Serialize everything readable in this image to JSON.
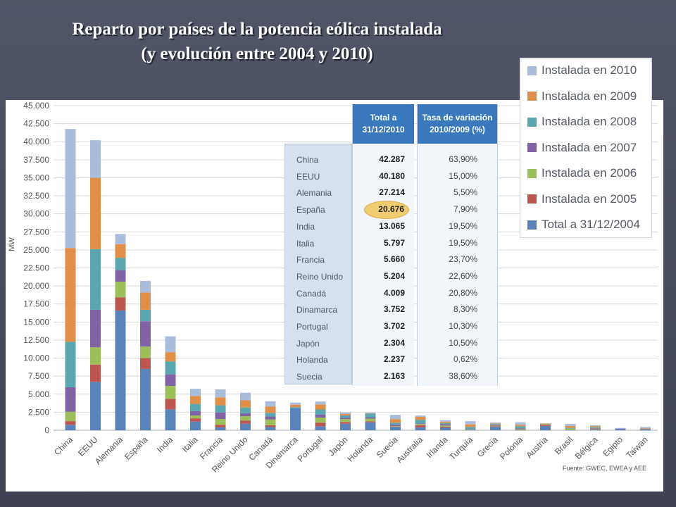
{
  "title": {
    "line1": "Reparto por países de la potencia eólica instalada",
    "line2": "(y evolución entre 2004 y 2010)"
  },
  "source": "Fuente: GWEC, EWEA y AEE",
  "colors": {
    "Total a 31/12/2004": "#5a84b9",
    "Instalada en 2005": "#bd5550",
    "Instalada en 2006": "#9cbf5a",
    "Instalada en 2007": "#8163a5",
    "Instalada en 2008": "#5aa7b0",
    "Instalada en 2009": "#e08e48",
    "Instalada en 2010": "#a9bcdc"
  },
  "legend": [
    "Instalada en 2010",
    "Instalada en 2009",
    "Instalada en 2008",
    "Instalada en 2007",
    "Instalada en 2006",
    "Instalada en 2005",
    "Total a 31/12/2004"
  ],
  "table": {
    "header_total": "Total a\n31/12/2010",
    "header_rate": "Tasa de variación\n2010/2009 (%)",
    "highlight_row": 3,
    "rows": [
      {
        "country": "China",
        "total": "42.287",
        "rate": "63,90%"
      },
      {
        "country": "EEUU",
        "total": "40.180",
        "rate": "15,00%"
      },
      {
        "country": "Alemania",
        "total": "27.214",
        "rate": "5,50%"
      },
      {
        "country": "España",
        "total": "20.676",
        "rate": "7,90%"
      },
      {
        "country": "India",
        "total": "13.065",
        "rate": "19,50%"
      },
      {
        "country": "Italia",
        "total": "5.797",
        "rate": "19,50%"
      },
      {
        "country": "Francia",
        "total": "5.660",
        "rate": "23,70%"
      },
      {
        "country": "Reino Unido",
        "total": "5.204",
        "rate": "22,60%"
      },
      {
        "country": "Canadá",
        "total": "4.009",
        "rate": "20,80%"
      },
      {
        "country": "Dinamarca",
        "total": "3.752",
        "rate": "8,30%"
      },
      {
        "country": "Portugal",
        "total": "3.702",
        "rate": "10,30%"
      },
      {
        "country": "Japón",
        "total": "2.304",
        "rate": "10,50%"
      },
      {
        "country": "Holanda",
        "total": "2.237",
        "rate": "0,62%"
      },
      {
        "country": "Suecia",
        "total": "2.163",
        "rate": "38,60%"
      }
    ]
  },
  "chart_data": {
    "type": "bar",
    "stacked": true,
    "ylabel": "MW",
    "ylim": [
      0,
      45000
    ],
    "yticks": [
      0,
      2500,
      5000,
      7500,
      10000,
      12500,
      15000,
      17500,
      20000,
      22500,
      25000,
      27500,
      30000,
      32500,
      35000,
      37500,
      40000,
      42500,
      45000
    ],
    "ytick_labels": [
      "0",
      "2.500",
      "5.000",
      "7.500",
      "10.000",
      "12.500",
      "15.000",
      "17.500",
      "20.000",
      "22.500",
      "25.000",
      "27.500",
      "30.000",
      "32.500",
      "35.000",
      "37.500",
      "40.000",
      "42.500",
      "45.000"
    ],
    "grid": true,
    "legend_position": "top-right",
    "categories": [
      "China",
      "EEUU",
      "Alemania",
      "España",
      "India",
      "Italia",
      "Francia",
      "Reino Unido",
      "Canadá",
      "Dinamarca",
      "Portugal",
      "Japón",
      "Holanda",
      "Suecia",
      "Australia",
      "Irlanda",
      "Turquía",
      "Grecia",
      "Polonia",
      "Austria",
      "Brasil",
      "Bélgica",
      "Egipto",
      "Taiwan"
    ],
    "series": [
      {
        "name": "Total a 31/12/2004",
        "values": [
          760,
          6700,
          16600,
          8500,
          2900,
          1200,
          400,
          900,
          450,
          3100,
          550,
          900,
          1100,
          450,
          400,
          350,
          20,
          470,
          60,
          600,
          30,
          95,
          150,
          15
        ]
      },
      {
        "name": "Instalada en 2005",
        "values": [
          500,
          2400,
          1800,
          1500,
          1450,
          450,
          360,
          450,
          250,
          0,
          500,
          250,
          150,
          70,
          300,
          150,
          0,
          100,
          20,
          200,
          0,
          70,
          0,
          0
        ]
      },
      {
        "name": "Instalada en 2006",
        "values": [
          1300,
          2400,
          2200,
          1600,
          1800,
          400,
          800,
          600,
          800,
          0,
          700,
          400,
          350,
          70,
          150,
          150,
          60,
          70,
          80,
          150,
          200,
          60,
          0,
          0
        ]
      },
      {
        "name": "Instalada en 2007",
        "values": [
          3400,
          5200,
          1600,
          3500,
          1600,
          600,
          900,
          400,
          400,
          0,
          430,
          200,
          200,
          200,
          100,
          200,
          80,
          120,
          120,
          0,
          0,
          90,
          80,
          100
        ]
      },
      {
        "name": "Instalada en 2008",
        "values": [
          6300,
          8400,
          1700,
          1600,
          1800,
          1000,
          1000,
          800,
          500,
          100,
          700,
          300,
          500,
          250,
          500,
          150,
          300,
          100,
          270,
          0,
          100,
          110,
          0,
          100
        ]
      },
      {
        "name": "Instalada en 2009",
        "values": [
          13000,
          9900,
          1900,
          2400,
          1270,
          1100,
          1100,
          1000,
          900,
          330,
          700,
          200,
          50,
          500,
          400,
          200,
          350,
          100,
          180,
          0,
          260,
          150,
          0,
          100
        ]
      },
      {
        "name": "Instalada en 2010",
        "values": [
          16500,
          5200,
          1400,
          1600,
          2200,
          1000,
          1100,
          1050,
          700,
          300,
          400,
          200,
          100,
          600,
          200,
          200,
          450,
          120,
          380,
          0,
          300,
          130,
          90,
          150
        ]
      }
    ]
  }
}
